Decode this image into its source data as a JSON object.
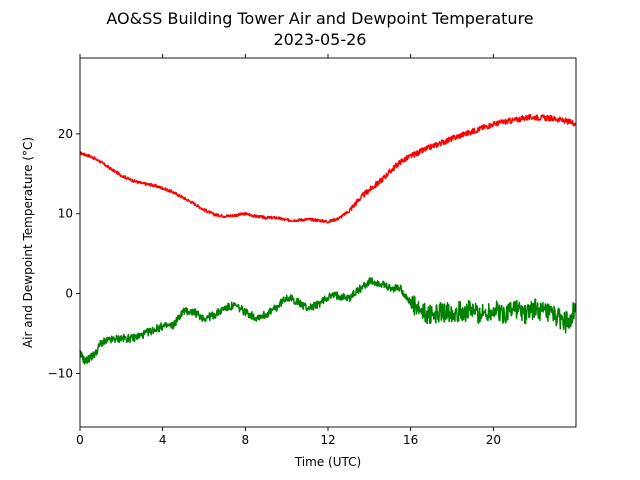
{
  "chart_data": {
    "type": "line",
    "title": "AO&SS Building Tower Air and Dewpoint Temperature",
    "subtitle": "2023-05-26",
    "xlabel": "Time (UTC)",
    "ylabel": "Air and Dewpoint Temperature (°C)",
    "xlim": [
      0,
      24
    ],
    "ylim": [
      -16.7,
      29.5
    ],
    "xticks": [
      0,
      4,
      8,
      12,
      16,
      20
    ],
    "yticks": [
      -10,
      0,
      10,
      20
    ],
    "grid": false,
    "legend": "none",
    "series": [
      {
        "color": "#ff0000",
        "x": [
          0,
          0.5,
          1,
          1.5,
          2,
          2.5,
          3,
          3.5,
          4,
          4.5,
          5,
          5.5,
          6,
          6.5,
          7,
          7.5,
          8,
          8.5,
          9,
          9.5,
          10,
          10.5,
          11,
          11.5,
          12,
          12.5,
          13,
          13.5,
          14,
          14.5,
          15,
          15.5,
          16,
          16.5,
          17,
          17.5,
          18,
          18.5,
          19,
          19.5,
          20,
          20.5,
          21,
          21.5,
          22,
          22.5,
          23,
          23.5,
          24
        ],
        "y": [
          17.6,
          17.2,
          16.5,
          15.6,
          14.8,
          14.2,
          13.8,
          13.6,
          13.2,
          12.7,
          12.0,
          11.3,
          10.5,
          9.9,
          9.7,
          9.8,
          10.0,
          9.7,
          9.5,
          9.5,
          9.2,
          9.2,
          9.3,
          9.2,
          9.0,
          9.4,
          10.3,
          11.8,
          13.0,
          14.0,
          15.3,
          16.5,
          17.2,
          17.8,
          18.4,
          18.9,
          19.4,
          19.9,
          20.3,
          20.8,
          21.2,
          21.5,
          21.7,
          22.0,
          22.1,
          22.0,
          21.9,
          21.6,
          21.3
        ]
      },
      {
        "color": "#008000",
        "x": [
          0,
          0.25,
          0.5,
          0.75,
          1,
          1.5,
          2,
          2.5,
          3,
          3.5,
          4,
          4.5,
          5,
          5.5,
          6,
          6.5,
          7,
          7.5,
          8,
          8.5,
          9,
          9.5,
          10,
          10.5,
          11,
          11.5,
          12,
          12.5,
          13,
          13.5,
          14,
          14.5,
          15,
          15.5,
          16,
          16.5,
          17,
          17.5,
          18,
          18.5,
          19,
          19.5,
          20,
          20.5,
          21,
          21.5,
          22,
          22.5,
          23,
          23.5,
          24
        ],
        "y": [
          -7.5,
          -8.5,
          -8.0,
          -7.5,
          -6.2,
          -5.8,
          -5.6,
          -5.6,
          -5.2,
          -4.6,
          -4.1,
          -4.0,
          -2.2,
          -2.3,
          -3.1,
          -2.7,
          -1.8,
          -1.5,
          -2.3,
          -3.0,
          -2.6,
          -1.8,
          -0.4,
          -1.0,
          -1.8,
          -1.4,
          -0.4,
          -0.2,
          -0.6,
          0.5,
          1.5,
          1.3,
          0.6,
          0.7,
          -1.2,
          -2.4,
          -2.7,
          -2.3,
          -2.3,
          -2.2,
          -2.2,
          -2.6,
          -2.0,
          -2.6,
          -1.7,
          -2.6,
          -1.8,
          -2.5,
          -2.9,
          -3.6,
          -2.0
        ]
      }
    ]
  }
}
